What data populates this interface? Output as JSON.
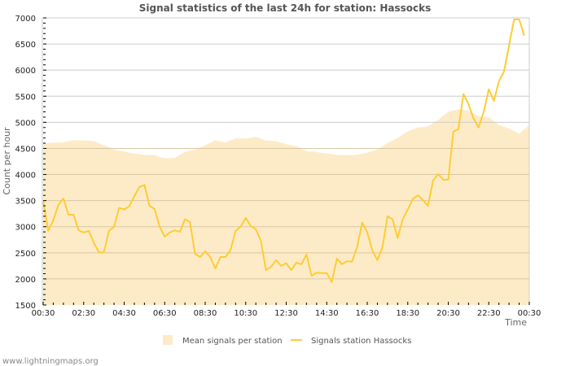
{
  "title": "Signal statistics of the last 24h for station: Hassocks",
  "footer": "www.lightningmaps.org",
  "colors": {
    "mean_fill": "#fdebc8",
    "station_line": "#ffcc33",
    "grid_light": "#cccccc",
    "grid_in_area": "#d8c7a2",
    "axis": "#cccccc"
  },
  "chart_data": {
    "type": "line",
    "title": "Signal statistics of the last 24h for station: Hassocks",
    "xlabel": "Time",
    "ylabel": "Count per hour",
    "ylim": [
      1500,
      7000
    ],
    "y_ticks": [
      1500,
      2000,
      2500,
      3000,
      3500,
      4000,
      4500,
      5000,
      5500,
      6000,
      6500,
      7000
    ],
    "x_tick_labels": [
      "00:30",
      "02:30",
      "04:30",
      "06:30",
      "08:30",
      "10:30",
      "12:30",
      "14:30",
      "16:30",
      "18:30",
      "20:30",
      "22:30",
      "00:30"
    ],
    "grid": true,
    "legend_position": "bottom",
    "legend": [
      "Mean signals per station",
      "Signals station Hassocks"
    ],
    "series": [
      {
        "name": "Mean signals per station",
        "style": "area",
        "x_hours": [
          0,
          0.5,
          1.0,
          1.5,
          2.0,
          2.5,
          3.0,
          3.5,
          4.0,
          4.5,
          5.0,
          5.5,
          6.0,
          6.5,
          7.0,
          7.5,
          8.0,
          8.5,
          9.0,
          9.5,
          10.0,
          10.5,
          11.0,
          11.5,
          12.0,
          12.5,
          13.0,
          13.5,
          14.0,
          14.5,
          15.0,
          15.5,
          16.0,
          16.5,
          17.0,
          17.5,
          18.0,
          18.5,
          19.0,
          19.5,
          20.0,
          20.5,
          21.0,
          21.5,
          22.0,
          22.5,
          23.0,
          23.5,
          24.0
        ],
        "values": [
          4600,
          4610,
          4620,
          4660,
          4650,
          4640,
          4560,
          4480,
          4440,
          4400,
          4380,
          4370,
          4310,
          4320,
          4430,
          4480,
          4560,
          4660,
          4610,
          4690,
          4690,
          4720,
          4650,
          4640,
          4580,
          4540,
          4450,
          4430,
          4400,
          4380,
          4370,
          4380,
          4420,
          4480,
          4600,
          4700,
          4830,
          4900,
          4920,
          5050,
          5200,
          5250,
          5220,
          5120,
          5100,
          4950,
          4880,
          4780,
          4950
        ]
      },
      {
        "name": "Signals station Hassocks",
        "style": "line",
        "x_hours": [
          0,
          0.25,
          0.5,
          0.75,
          1.0,
          1.25,
          1.5,
          1.75,
          2.0,
          2.25,
          2.5,
          2.75,
          3.0,
          3.25,
          3.5,
          3.75,
          4.0,
          4.25,
          4.5,
          4.75,
          5.0,
          5.25,
          5.5,
          5.75,
          6.0,
          6.25,
          6.5,
          6.75,
          7.0,
          7.25,
          7.5,
          7.75,
          8.0,
          8.25,
          8.5,
          8.75,
          9.0,
          9.25,
          9.5,
          9.75,
          10.0,
          10.25,
          10.5,
          10.75,
          11.0,
          11.25,
          11.5,
          11.75,
          12.0,
          12.25,
          12.5,
          12.75,
          13.0,
          13.25,
          13.5,
          13.75,
          14.0,
          14.25,
          14.5,
          14.75,
          15.0,
          15.25,
          15.5,
          15.75,
          16.0,
          16.25,
          16.5,
          16.75,
          17.0,
          17.25,
          17.5,
          17.75,
          18.0,
          18.25,
          18.5,
          18.75,
          19.0,
          19.25,
          19.5,
          19.75,
          20.0,
          20.25,
          20.5,
          20.75,
          21.0,
          21.25,
          21.5,
          21.75,
          22.0,
          22.25,
          22.5,
          22.75,
          23.0,
          23.25,
          23.5,
          23.75
        ],
        "values": [
          3500,
          2920,
          3120,
          3420,
          3540,
          3230,
          3230,
          2930,
          2890,
          2920,
          2690,
          2510,
          2510,
          2920,
          3000,
          3360,
          3330,
          3390,
          3580,
          3760,
          3800,
          3400,
          3340,
          3000,
          2810,
          2890,
          2930,
          2900,
          3140,
          3090,
          2480,
          2420,
          2530,
          2420,
          2200,
          2420,
          2420,
          2550,
          2920,
          3000,
          3170,
          3010,
          2950,
          2730,
          2170,
          2230,
          2360,
          2250,
          2300,
          2170,
          2310,
          2280,
          2470,
          2060,
          2120,
          2110,
          2110,
          1940,
          2390,
          2280,
          2340,
          2330,
          2610,
          3080,
          2890,
          2550,
          2360,
          2610,
          3200,
          3140,
          2780,
          3140,
          3330,
          3530,
          3600,
          3510,
          3400,
          3880,
          4010,
          3900,
          3900,
          4820,
          4870,
          5540,
          5350,
          5070,
          4900,
          5200,
          5630,
          5410,
          5790,
          5970,
          6470,
          6970,
          6970,
          6660
        ]
      }
    ]
  }
}
